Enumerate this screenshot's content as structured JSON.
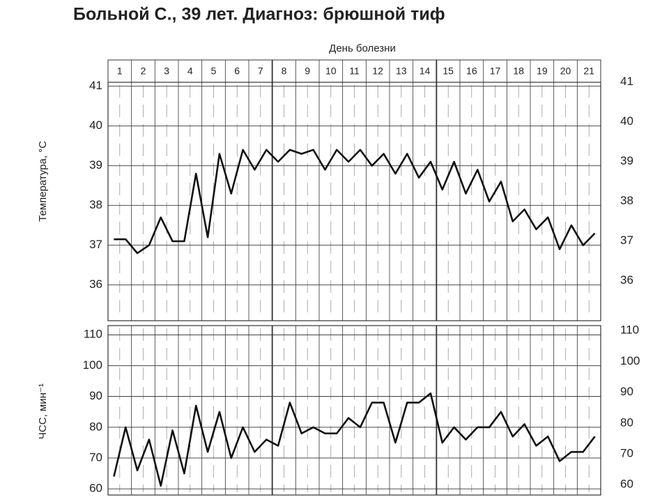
{
  "chart_data": [
    {
      "type": "line",
      "title": "Больной С., 39 лет. Диагноз: брюшной тиф",
      "x_label": "День болезни",
      "y_label": "Температура, °С",
      "days": [
        1,
        2,
        3,
        4,
        5,
        6,
        7,
        8,
        9,
        10,
        11,
        12,
        13,
        14,
        15,
        16,
        17,
        18,
        19,
        20,
        21
      ],
      "series": [
        {
          "name": "Температура",
          "color": "#111111",
          "values": [
            37.15,
            37.15,
            36.8,
            37.0,
            37.7,
            37.1,
            37.1,
            38.8,
            37.2,
            39.3,
            38.3,
            39.4,
            38.9,
            39.4,
            39.1,
            39.4,
            39.3,
            39.4,
            38.9,
            39.4,
            39.1,
            39.4,
            39.0,
            39.3,
            38.8,
            39.3,
            38.7,
            39.1,
            38.4,
            39.1,
            38.3,
            38.9,
            38.1,
            38.6,
            37.6,
            37.9,
            37.4,
            37.7,
            36.9,
            37.5,
            37.0,
            37.3
          ]
        }
      ],
      "ylim": [
        35.1,
        41.1
      ],
      "yticks": [
        36,
        37,
        38,
        39,
        40,
        41
      ],
      "grid": true
    },
    {
      "type": "line",
      "y_label": "ЧСС, мин⁻¹",
      "series": [
        {
          "name": "ЧСС",
          "color": "#111111",
          "values": [
            64,
            80,
            66,
            76,
            61,
            79,
            65,
            87,
            72,
            85,
            70,
            80,
            72,
            76,
            74,
            88,
            78,
            80,
            78,
            78,
            83,
            80,
            88,
            88,
            75,
            88,
            88,
            91,
            75,
            80,
            76,
            80,
            80,
            85,
            77,
            81,
            74,
            77,
            69,
            72,
            72,
            77
          ]
        }
      ],
      "ylim": [
        58,
        113
      ],
      "yticks": [
        60,
        70,
        80,
        90,
        100,
        110
      ],
      "grid": true
    }
  ]
}
